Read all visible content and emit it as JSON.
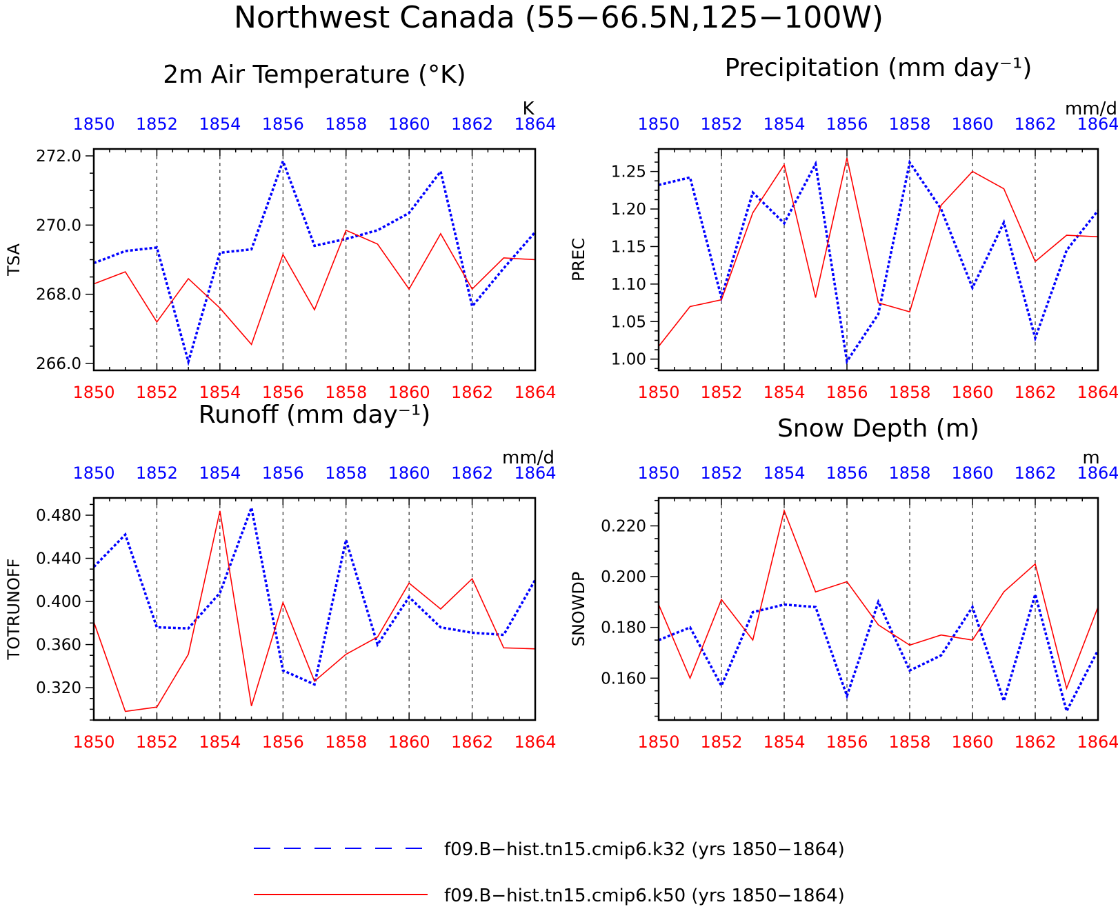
{
  "title": "Northwest Canada (55−66.5N,125−100W)",
  "colors": {
    "k32": "#0000ff",
    "k50": "#ff0000",
    "axis": "#000000",
    "top_ticks": "#0000ff",
    "bottom_ticks": "#ff0000"
  },
  "legend": {
    "k32": "f09.B−hist.tn15.cmip6.k32 (yrs 1850−1864)",
    "k50": "f09.B−hist.tn15.cmip6.k50 (yrs 1850−1864)"
  },
  "chart_data": [
    {
      "type": "line",
      "title": "2m Air Temperature (°K)",
      "ylabel": "TSA",
      "units": "K",
      "x": [
        1850,
        1851,
        1852,
        1853,
        1854,
        1855,
        1856,
        1857,
        1858,
        1859,
        1860,
        1861,
        1862,
        1863,
        1864
      ],
      "xlim": [
        1850,
        1864
      ],
      "ylim": [
        265.8,
        272.2
      ],
      "yticks": [
        "266.0",
        "268.0",
        "270.0",
        "272.0"
      ],
      "ytick_values": [
        266,
        268,
        270,
        272
      ],
      "xtick_labels": [
        "1850",
        "1852",
        "1854",
        "1856",
        "1858",
        "1860",
        "1862",
        "1864"
      ],
      "series": [
        {
          "name": "f09.B−hist.tn15.cmip6.k32 (yrs 1850−1864)",
          "color": "#0000ff",
          "dash": "dotted",
          "values": [
            268.9,
            269.25,
            269.35,
            266.05,
            269.2,
            269.3,
            271.85,
            269.4,
            269.6,
            269.85,
            270.35,
            271.55,
            267.65,
            268.75,
            269.8
          ]
        },
        {
          "name": "f09.B−hist.tn15.cmip6.k50 (yrs 1850−1864)",
          "color": "#ff0000",
          "dash": "solid",
          "values": [
            268.3,
            268.65,
            267.2,
            268.45,
            267.6,
            266.55,
            269.15,
            267.55,
            269.85,
            269.45,
            268.15,
            269.75,
            268.15,
            269.05,
            269.0
          ]
        }
      ]
    },
    {
      "type": "line",
      "title": "Precipitation (mm day⁻¹)",
      "ylabel": "PREC",
      "units": "mm/d",
      "x": [
        1850,
        1851,
        1852,
        1853,
        1854,
        1855,
        1856,
        1857,
        1858,
        1859,
        1860,
        1861,
        1862,
        1863,
        1864
      ],
      "xlim": [
        1850,
        1864
      ],
      "ylim": [
        0.985,
        1.28
      ],
      "yticks": [
        "1.00",
        "1.05",
        "1.10",
        "1.15",
        "1.20",
        "1.25"
      ],
      "ytick_values": [
        1.0,
        1.05,
        1.1,
        1.15,
        1.2,
        1.25
      ],
      "xtick_labels": [
        "1850",
        "1852",
        "1854",
        "1856",
        "1858",
        "1860",
        "1862",
        "1864"
      ],
      "series": [
        {
          "name": "f09.B−hist.tn15.cmip6.k32 (yrs 1850−1864)",
          "color": "#0000ff",
          "dash": "dotted",
          "values": [
            1.232,
            1.242,
            1.082,
            1.222,
            1.181,
            1.26,
            0.997,
            1.06,
            1.262,
            1.2,
            1.095,
            1.182,
            1.028,
            1.145,
            1.198
          ]
        },
        {
          "name": "f09.B−hist.tn15.cmip6.k50 (yrs 1850−1864)",
          "color": "#ff0000",
          "dash": "solid",
          "values": [
            1.017,
            1.07,
            1.079,
            1.195,
            1.259,
            1.082,
            1.268,
            1.075,
            1.063,
            1.205,
            1.25,
            1.227,
            1.13,
            1.165,
            1.163
          ]
        }
      ]
    },
    {
      "type": "line",
      "title": "Runoff (mm day⁻¹)",
      "ylabel": "TOTRUNOFF",
      "units": "mm/d",
      "x": [
        1850,
        1851,
        1852,
        1853,
        1854,
        1855,
        1856,
        1857,
        1858,
        1859,
        1860,
        1861,
        1862,
        1863,
        1864
      ],
      "xlim": [
        1850,
        1864
      ],
      "ylim": [
        0.29,
        0.496
      ],
      "yticks": [
        "0.320",
        "0.360",
        "0.400",
        "0.440",
        "0.480"
      ],
      "ytick_values": [
        0.32,
        0.36,
        0.4,
        0.44,
        0.48
      ],
      "xtick_labels": [
        "1850",
        "1852",
        "1854",
        "1856",
        "1858",
        "1860",
        "1862",
        "1864"
      ],
      "series": [
        {
          "name": "f09.B−hist.tn15.cmip6.k32 (yrs 1850−1864)",
          "color": "#0000ff",
          "dash": "dotted",
          "values": [
            0.432,
            0.462,
            0.376,
            0.375,
            0.408,
            0.487,
            0.336,
            0.323,
            0.457,
            0.36,
            0.404,
            0.376,
            0.371,
            0.369,
            0.42
          ]
        },
        {
          "name": "f09.B−hist.tn15.cmip6.k50 (yrs 1850−1864)",
          "color": "#ff0000",
          "dash": "solid",
          "values": [
            0.381,
            0.298,
            0.302,
            0.351,
            0.484,
            0.303,
            0.399,
            0.326,
            0.351,
            0.367,
            0.417,
            0.393,
            0.421,
            0.357,
            0.356
          ]
        }
      ]
    },
    {
      "type": "line",
      "title": "Snow Depth (m)",
      "ylabel": "SNOWDP",
      "units": "m",
      "x": [
        1850,
        1851,
        1852,
        1853,
        1854,
        1855,
        1856,
        1857,
        1858,
        1859,
        1860,
        1861,
        1862,
        1863,
        1864
      ],
      "xlim": [
        1850,
        1864
      ],
      "ylim": [
        0.1435,
        0.231
      ],
      "yticks": [
        "0.160",
        "0.180",
        "0.200",
        "0.220"
      ],
      "ytick_values": [
        0.16,
        0.18,
        0.2,
        0.22
      ],
      "xtick_labels": [
        "1850",
        "1852",
        "1854",
        "1856",
        "1858",
        "1860",
        "1862",
        "1864"
      ],
      "series": [
        {
          "name": "f09.B−hist.tn15.cmip6.k32 (yrs 1850−1864)",
          "color": "#0000ff",
          "dash": "dotted",
          "values": [
            0.175,
            0.18,
            0.157,
            0.186,
            0.189,
            0.188,
            0.153,
            0.19,
            0.163,
            0.169,
            0.188,
            0.151,
            0.193,
            0.147,
            0.171
          ]
        },
        {
          "name": "f09.B−hist.tn15.cmip6.k50 (yrs 1850−1864)",
          "color": "#ff0000",
          "dash": "solid",
          "values": [
            0.189,
            0.16,
            0.191,
            0.175,
            0.226,
            0.194,
            0.198,
            0.181,
            0.173,
            0.177,
            0.175,
            0.194,
            0.205,
            0.156,
            0.188
          ]
        }
      ]
    }
  ]
}
